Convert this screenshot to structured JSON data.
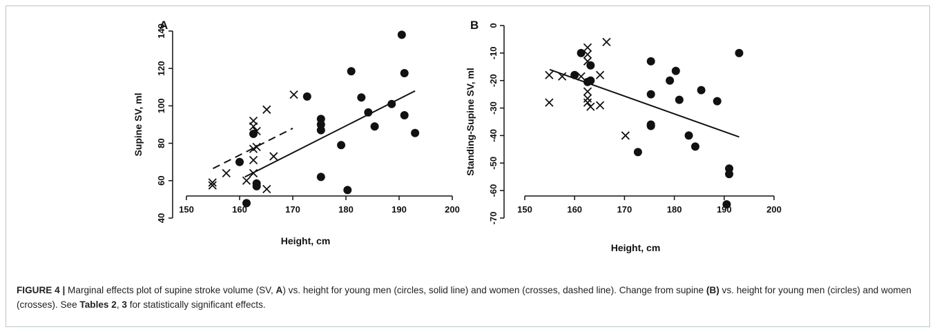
{
  "chart_data": [
    {
      "type": "scatter",
      "panel_label": "A",
      "xlabel": "Height, cm",
      "ylabel": "Supine SV, ml",
      "xlim": [
        150,
        200
      ],
      "ylim": [
        40,
        140
      ],
      "xticks": [
        150,
        160,
        170,
        180,
        190,
        200
      ],
      "yticks": [
        40,
        60,
        80,
        100,
        120,
        140
      ],
      "series": [
        {
          "marker": "circle",
          "points": [
            [
              160,
              70
            ],
            [
              161.3,
              48
            ],
            [
              162.6,
              85
            ],
            [
              163.2,
              58.5
            ],
            [
              163.2,
              57
            ],
            [
              172.7,
              105
            ],
            [
              175.3,
              93
            ],
            [
              175.3,
              90
            ],
            [
              175.3,
              87
            ],
            [
              175.3,
              62
            ],
            [
              179.1,
              79
            ],
            [
              180.3,
              55
            ],
            [
              181,
              118.5
            ],
            [
              182.9,
              104.5
            ],
            [
              184.2,
              96.5
            ],
            [
              185.4,
              89
            ],
            [
              188.6,
              101
            ],
            [
              190.5,
              138
            ],
            [
              191,
              117.5
            ],
            [
              191,
              95
            ],
            [
              193,
              85.5
            ]
          ]
        },
        {
          "marker": "cross",
          "points": [
            [
              154.9,
              59
            ],
            [
              154.9,
              57.5
            ],
            [
              157.5,
              64
            ],
            [
              161.3,
              60
            ],
            [
              162.6,
              92
            ],
            [
              162.6,
              89
            ],
            [
              162.6,
              77
            ],
            [
              162.6,
              71
            ],
            [
              162.6,
              64
            ],
            [
              163.2,
              86.5
            ],
            [
              163.2,
              78
            ],
            [
              165.1,
              98
            ],
            [
              165.1,
              55.5
            ],
            [
              166.4,
              73
            ],
            [
              170.2,
              106
            ]
          ]
        }
      ],
      "fit_lines": [
        {
          "style": "solid",
          "from": [
            161,
            62
          ],
          "to": [
            193,
            108
          ]
        },
        {
          "style": "dashed",
          "from": [
            155,
            66.5
          ],
          "to": [
            170,
            88
          ]
        }
      ]
    },
    {
      "type": "scatter",
      "panel_label": "B",
      "xlabel": "Height, cm",
      "ylabel": "Standing-Supine SV, ml",
      "xlim": [
        150,
        200
      ],
      "ylim": [
        -70,
        0
      ],
      "xticks": [
        150,
        160,
        170,
        180,
        190,
        200
      ],
      "yticks": [
        0,
        -10,
        -20,
        -30,
        -40,
        -50,
        -60,
        -70
      ],
      "series": [
        {
          "marker": "circle",
          "points": [
            [
              160,
              -18
            ],
            [
              161.3,
              -10
            ],
            [
              162.6,
              -20.5
            ],
            [
              163.2,
              -14.5
            ],
            [
              163.2,
              -20
            ],
            [
              172.7,
              -46
            ],
            [
              175.3,
              -13
            ],
            [
              175.3,
              -25
            ],
            [
              175.3,
              -36
            ],
            [
              175.3,
              -36.5
            ],
            [
              179.1,
              -20
            ],
            [
              180.3,
              -16.5
            ],
            [
              181,
              -27
            ],
            [
              182.9,
              -40
            ],
            [
              184.2,
              -44
            ],
            [
              185.4,
              -23.5
            ],
            [
              188.6,
              -27.5
            ],
            [
              190.5,
              -65
            ],
            [
              191,
              -52
            ],
            [
              191,
              -54
            ],
            [
              193,
              -10
            ]
          ]
        },
        {
          "marker": "cross",
          "points": [
            [
              154.9,
              -18
            ],
            [
              154.9,
              -28
            ],
            [
              157.5,
              -18.5
            ],
            [
              161.3,
              -18.5
            ],
            [
              162.6,
              -8
            ],
            [
              162.6,
              -10.5
            ],
            [
              162.6,
              -13
            ],
            [
              162.6,
              -24
            ],
            [
              162.6,
              -26.5
            ],
            [
              162.6,
              -28
            ],
            [
              163.2,
              -29.5
            ],
            [
              165.1,
              -18
            ],
            [
              165.1,
              -29
            ],
            [
              166.4,
              -6
            ],
            [
              170.2,
              -40
            ]
          ]
        }
      ],
      "fit_lines": [
        {
          "style": "solid",
          "from": [
            155,
            -16
          ],
          "to": [
            193,
            -40.5
          ]
        }
      ]
    }
  ],
  "caption": {
    "figure_label": "FIGURE 4 |",
    "part1": " Marginal effects plot of supine stroke volume (SV, ",
    "panel_a": "A",
    "part2": ") vs. height for young men (circles, solid line) and women (crosses, dashed line). Change from supine ",
    "panel_b": "(B)",
    "part3": " vs. height for young men (circles) and women (crosses). See ",
    "tables_ref": "Tables 2",
    "part4": ", ",
    "tables_ref2": "3",
    "part5": " for statistically significant effects."
  }
}
